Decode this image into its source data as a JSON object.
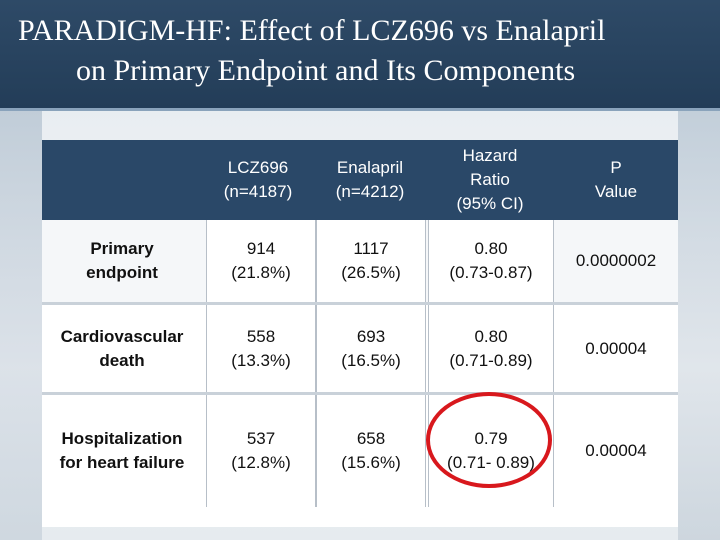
{
  "title": {
    "line1": "PARADIGM-HF: Effect of LCZ696 vs Enalapril",
    "line2": "on Primary Endpoint and Its Components"
  },
  "table": {
    "headers": [
      "",
      "LCZ696\n(n=4187)",
      "Enalapril\n(n=4212)",
      "Hazard\nRatio\n(95% CI)",
      "P\nValue"
    ],
    "rows": [
      {
        "label": "Primary\nendpoint",
        "lcz696": "914\n(21.8%)",
        "enalapril": "1117\n(26.5%)",
        "hazard_ratio": "0.80\n(0.73-0.87)",
        "p_value": "0.0000002"
      },
      {
        "label": "Cardiovascular\ndeath",
        "lcz696": "558\n(13.3%)",
        "enalapril": "693\n(16.5%)",
        "hazard_ratio": "0.80\n(0.71-0.89)",
        "p_value": "0.00004"
      },
      {
        "label": "Hospitalization\nfor heart failure",
        "lcz696": "537\n(12.8%)",
        "enalapril": "658\n(15.6%)",
        "hazard_ratio": "0.79\n(0.71- 0.89)",
        "p_value": "0.00004"
      }
    ]
  },
  "highlight_color": "#d8181d"
}
